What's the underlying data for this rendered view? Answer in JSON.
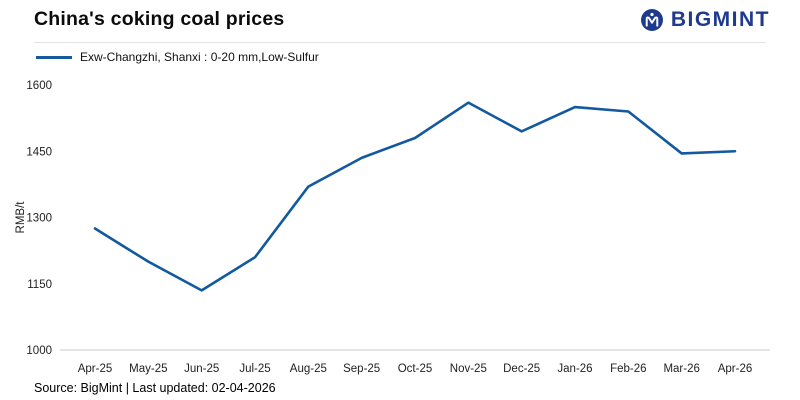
{
  "header": {
    "title": "China's coking coal prices",
    "brand": "BIGMINT"
  },
  "legend": {
    "label": "Exw-Changzhi, Shanxi : 0-20 mm,Low-Sulfur"
  },
  "footer": {
    "text": "Source: BigMint | Last updated: 02-04-2026"
  },
  "colors": {
    "line": "#1259a0",
    "brand": "#1d3a8f",
    "axis": "#c8c8c8",
    "tick_text": "#222222"
  },
  "chart_data": {
    "type": "line",
    "title": "China's coking coal prices",
    "categories": [
      "Apr-25",
      "May-25",
      "Jun-25",
      "Jul-25",
      "Aug-25",
      "Sep-25",
      "Oct-25",
      "Nov-25",
      "Dec-25",
      "Jan-26",
      "Feb-26",
      "Mar-26",
      "Apr-26"
    ],
    "series": [
      {
        "name": "Exw-Changzhi, Shanxi : 0-20 mm,Low-Sulfur",
        "values": [
          1275,
          1200,
          1135,
          1210,
          1370,
          1435,
          1480,
          1560,
          1495,
          1550,
          1540,
          1445,
          1450
        ]
      }
    ],
    "xlabel": "",
    "ylabel": "RMB/t",
    "ylim": [
      1000,
      1600
    ],
    "yticks": [
      1000,
      1150,
      1300,
      1450,
      1600
    ],
    "grid": false,
    "legend_position": "top-left"
  }
}
